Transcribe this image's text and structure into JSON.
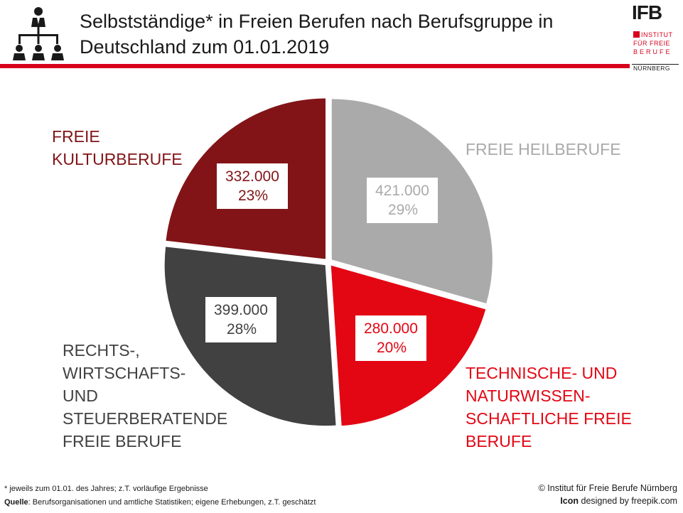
{
  "header": {
    "title": "Selbstständige* in Freien Berufen nach Berufsgruppe in Deutschland zum 01.01.2019",
    "icon": "organization-hierarchy-icon"
  },
  "logo": {
    "abbr": "IFB",
    "line1": "INSTITUT",
    "line2": "FÜR FREIE",
    "line3": "BERUFE",
    "city": "NÜRNBERG"
  },
  "chart_data": {
    "type": "pie",
    "title": "Selbstständige* in Freien Berufen nach Berufsgruppe in Deutschland zum 01.01.2019",
    "slices": [
      {
        "label": "FREIE HEILBERUFE",
        "value": 421000,
        "value_text": "421.000",
        "percent_text": "29%",
        "color": "#aaaaaa"
      },
      {
        "label": "TECHNISCHE- UND NATURWISSEN-SCHAFTLICHE FREIE BERUFE",
        "value": 280000,
        "value_text": "280.000",
        "percent_text": "20%",
        "color": "#e30613"
      },
      {
        "label": "RECHTS-, WIRTSCHAFTS- UND STEUERBERATENDE FREIE BERUFE",
        "value": 399000,
        "value_text": "399.000",
        "percent_text": "28%",
        "color": "#414141"
      },
      {
        "label": "FREIE KULTURBERUFE",
        "value": 332000,
        "value_text": "332.000",
        "percent_text": "23%",
        "color": "#821417"
      }
    ]
  },
  "labels": {
    "heil": "FREIE HEILBERUFE",
    "tech": [
      "TECHNISCHE- UND",
      "NATURWISSEN-",
      "SCHAFTLICHE FREIE",
      "BERUFE"
    ],
    "recht": [
      "RECHTS-,",
      "WIRTSCHAFTS-",
      "UND",
      "STEUERBERATENDE",
      "FREIE BERUFE"
    ],
    "kultur": [
      "FREIE",
      "KULTURBERUFE"
    ]
  },
  "colors": {
    "accent_red": "#d7001c",
    "heil_text": "#aaaaaa",
    "tech_text": "#e30613",
    "recht_text": "#414141",
    "kultur_text": "#821417"
  },
  "footer": {
    "footnote": "* jeweils zum 01.01. des Jahres; z.T. vorläufige Ergebnisse",
    "source_label": "Quelle",
    "source_text": ": Berufsorganisationen und amtliche Statistiken; eigene Erhebungen, z.T. geschätzt",
    "copyright": "© Institut für Freie Berufe Nürnberg",
    "icon_credit_bold": "Icon",
    "icon_credit_text": " designed by freepik.com"
  }
}
